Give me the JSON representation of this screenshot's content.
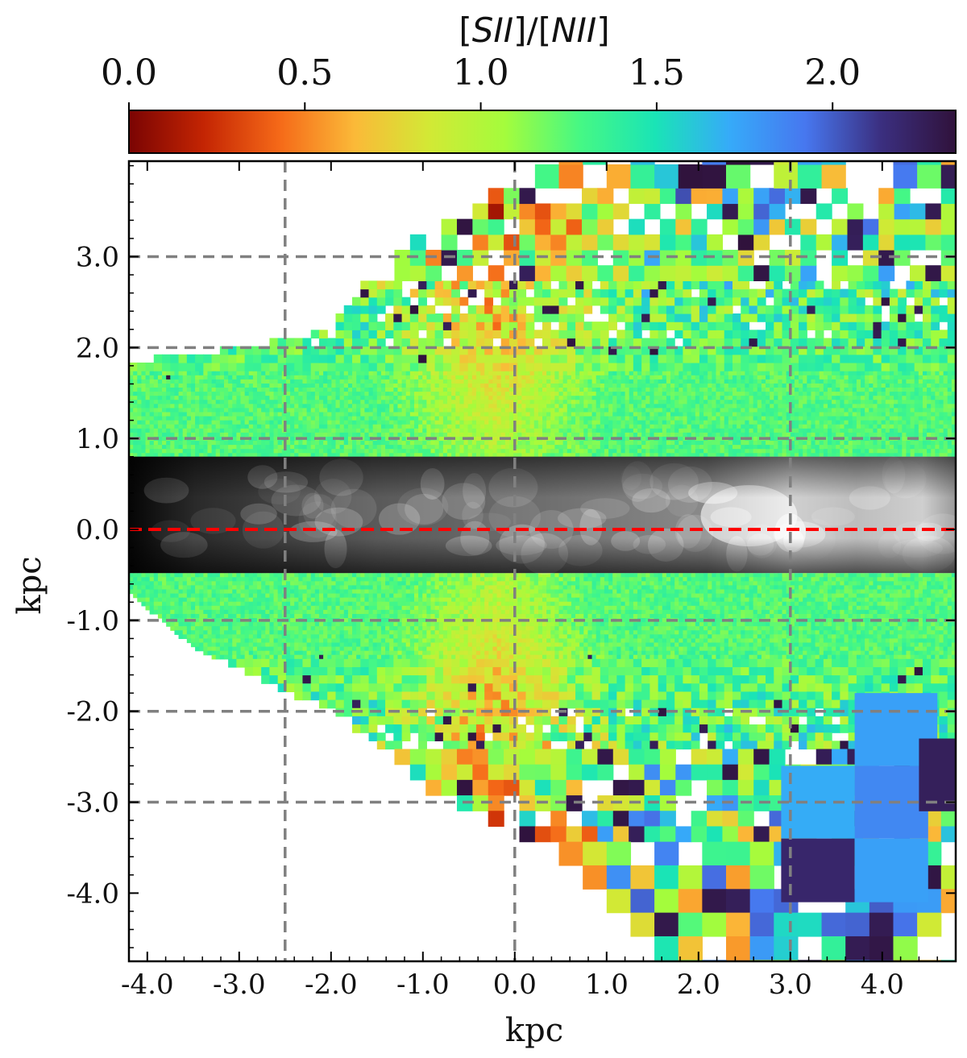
{
  "chart_data": {
    "type": "heatmap",
    "title": "",
    "colorbar": {
      "label_parts": [
        "[",
        "SII",
        "]/[",
        "NII",
        "]"
      ],
      "min": 0.0,
      "max": 2.35,
      "ticks": [
        0.0,
        0.5,
        1.0,
        1.5,
        2.0
      ],
      "tick_labels": [
        "0.0",
        "0.5",
        "1.0",
        "1.5",
        "2.0"
      ],
      "colormap": "turbo_r",
      "colormap_stops": [
        "#7a0403",
        "#c42503",
        "#f56918",
        "#fbb938",
        "#d2e935",
        "#a4fc3c",
        "#46f884",
        "#1ae4b6",
        "#36aaf9",
        "#4777ef",
        "#3b2f80",
        "#30123b"
      ]
    },
    "x_axis": {
      "label": "kpc",
      "range": [
        -4.2,
        4.8
      ],
      "ticks": [
        -4.0,
        -3.0,
        -2.0,
        -1.0,
        0.0,
        1.0,
        2.0,
        3.0,
        4.0
      ],
      "tick_labels": [
        "-4.0",
        "-3.0",
        "-2.0",
        "-1.0",
        "0.0",
        "1.0",
        "2.0",
        "3.0",
        "4.0"
      ]
    },
    "y_axis": {
      "label": "kpc",
      "range": [
        -4.75,
        4.05
      ],
      "ticks": [
        -4.0,
        -3.0,
        -2.0,
        -1.0,
        0.0,
        1.0,
        2.0,
        3.0
      ],
      "tick_labels": [
        "-4.0",
        "-3.0",
        "-2.0",
        "-1.0",
        "0.0",
        "1.0",
        "2.0",
        "3.0"
      ]
    },
    "grid_lines": {
      "vertical_x": [
        -2.5,
        0.0,
        3.0
      ],
      "horizontal_y": [
        3.0,
        2.0,
        1.0,
        -1.0,
        -2.0,
        -3.0
      ],
      "color": "#808080",
      "style": "dashed"
    },
    "midplane_line": {
      "y": 0.0,
      "color": "#ff0000",
      "style": "dashed"
    },
    "disk_mask": {
      "y_min": -0.48,
      "y_max": 0.8,
      "style": "grayscale continuum"
    },
    "map_regions": {
      "upper_left_edge_points": [
        [
          -4.2,
          1.85
        ],
        [
          -3.0,
          2.0
        ],
        [
          -2.0,
          2.2
        ],
        [
          -1.5,
          2.9
        ],
        [
          -1.0,
          3.2
        ],
        [
          0.0,
          3.8
        ],
        [
          0.5,
          4.05
        ]
      ],
      "lower_left_edge_points": [
        [
          -4.2,
          -0.7
        ],
        [
          -3.5,
          -1.3
        ],
        [
          -2.0,
          -2.0
        ],
        [
          -1.0,
          -2.8
        ],
        [
          0.0,
          -3.3
        ],
        [
          1.0,
          -4.0
        ],
        [
          1.5,
          -4.75
        ]
      ],
      "typical_ratio_near_disk": 1.25,
      "central_cone_ratio": 0.7,
      "outer_ratio_range": [
        0.7,
        2.35
      ]
    }
  }
}
